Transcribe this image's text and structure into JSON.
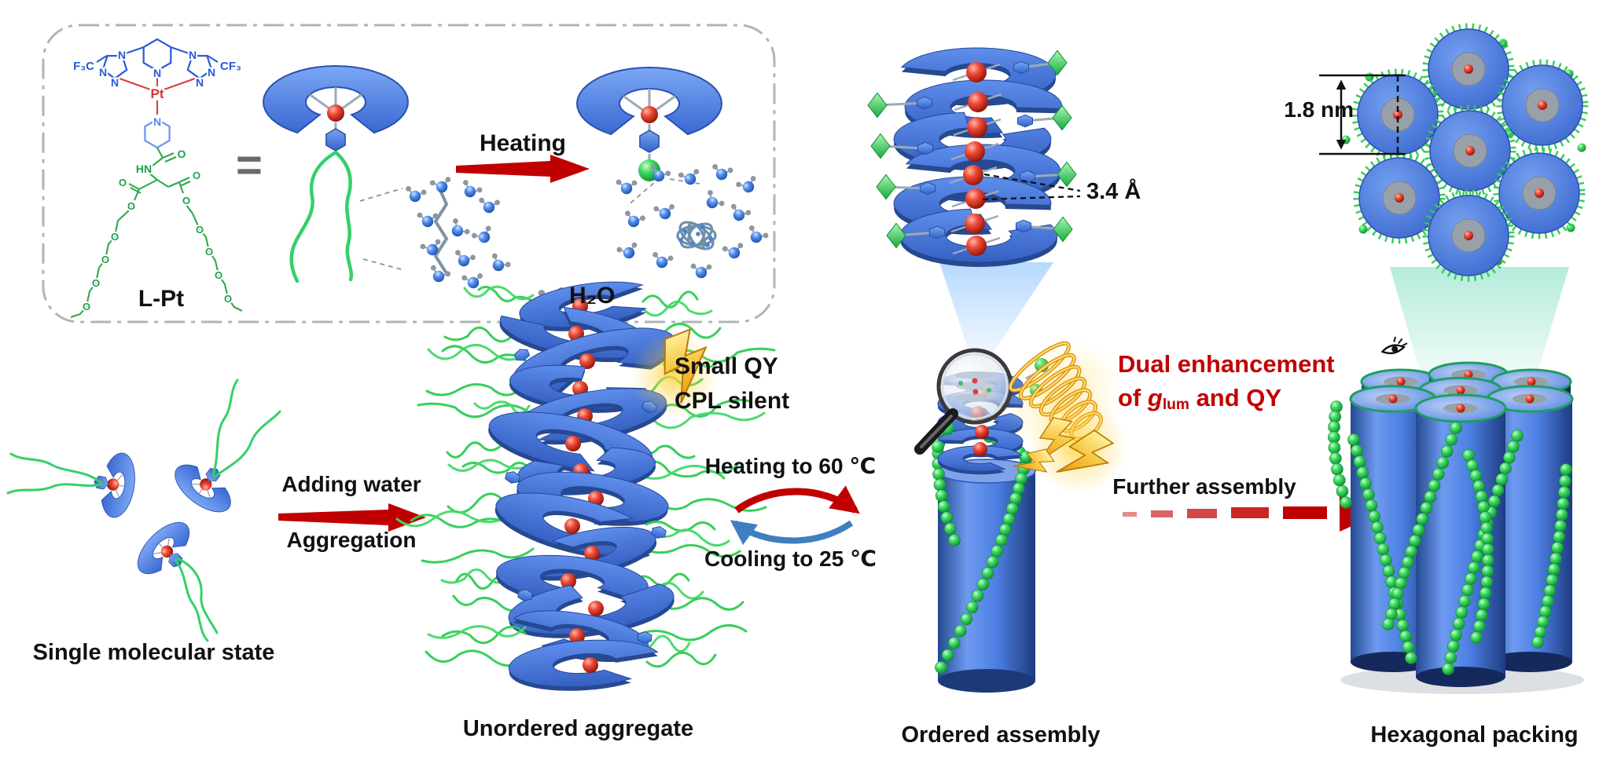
{
  "inset": {
    "molecule_name": "L-Pt",
    "equals_sign": "=",
    "heating_arrow_label": "Heating",
    "water_legend_label": "H₂O",
    "atoms": {
      "f3c": "F₃C",
      "cf3": "CF₃",
      "n": "N",
      "pt": "Pt",
      "hn": "HN",
      "o": "O"
    }
  },
  "annotations": {
    "pi_stacking_distance": "3.4 Å",
    "column_diameter": "1.8 nm",
    "small_qy_line1": "Small QY",
    "small_qy_line2": "CPL silent",
    "dual_line1": "Dual enhancement",
    "dual_line2_pre": "of ",
    "dual_line2_g": "g",
    "dual_line2_sub": "lum",
    "dual_line2_post": " and QY"
  },
  "arrows": {
    "adding_water_top": "Adding water",
    "adding_water_bottom": "Aggregation",
    "heating_cycle_top": "Heating to 60 ℃",
    "heating_cycle_bottom": "Cooling to 25 ℃",
    "further_assembly": "Further assembly"
  },
  "captions": {
    "stage1": "Single molecular state",
    "stage2": "Unordered aggregate",
    "stage3": "Ordered assembly",
    "stage4": "Hexagonal packing"
  },
  "colors": {
    "disc_blue": "#3e74d8",
    "sphere_red": "#d7281e",
    "chain_green": "#2ecc52",
    "arrow_red": "#c00000",
    "arrow_blue": "#3f7fc0",
    "accent_gold": "#f5b800",
    "text_red": "#c00000",
    "text_black": "#111111"
  }
}
